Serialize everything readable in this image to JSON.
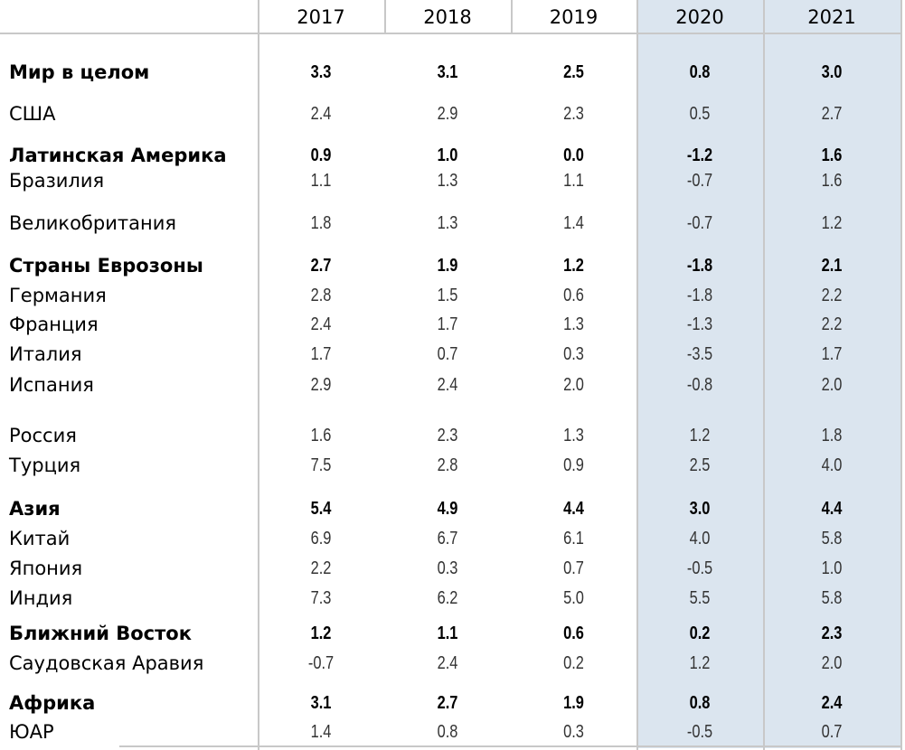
{
  "years": [
    "2017",
    "2018",
    "2019",
    "2020",
    "2021"
  ],
  "rows": [
    {
      "label": "Мир в целом",
      "bold": true,
      "values": [
        "3.3",
        "3.1",
        "2.5",
        "0.8",
        "3.0"
      ]
    },
    {
      "label": "США",
      "bold": false,
      "values": [
        "2.4",
        "2.9",
        "2.3",
        "0.5",
        "2.7"
      ]
    },
    {
      "label": "Латинская Америка",
      "bold": true,
      "values": [
        "0.9",
        "1.0",
        "0.0",
        "-1.2",
        "1.6"
      ]
    },
    {
      "label": "Бразилия",
      "bold": false,
      "values": [
        "1.1",
        "1.3",
        "1.1",
        "-0.7",
        "1.6"
      ]
    },
    {
      "label": "Великобритания",
      "bold": false,
      "values": [
        "1.8",
        "1.3",
        "1.4",
        "-0.7",
        "1.2"
      ]
    },
    {
      "label": "Страны Еврозоны",
      "bold": true,
      "values": [
        "2.7",
        "1.9",
        "1.2",
        "-1.8",
        "2.1"
      ]
    },
    {
      "label": "Германия",
      "bold": false,
      "values": [
        "2.8",
        "1.5",
        "0.6",
        "-1.8",
        "2.2"
      ]
    },
    {
      "label": "Франция",
      "bold": false,
      "values": [
        "2.4",
        "1.7",
        "1.3",
        "-1.3",
        "2.2"
      ]
    },
    {
      "label": "Италия",
      "bold": false,
      "values": [
        "1.7",
        "0.7",
        "0.3",
        "-3.5",
        "1.7"
      ]
    },
    {
      "label": "Испания",
      "bold": false,
      "values": [
        "2.9",
        "2.4",
        "2.0",
        "-0.8",
        "2.0"
      ]
    },
    {
      "label": "Россия",
      "bold": false,
      "values": [
        "1.6",
        "2.3",
        "1.3",
        "1.2",
        "1.8"
      ]
    },
    {
      "label": "Турция",
      "bold": false,
      "values": [
        "7.5",
        "2.8",
        "0.9",
        "2.5",
        "4.0"
      ]
    },
    {
      "label": "Азия",
      "bold": true,
      "values": [
        "5.4",
        "4.9",
        "4.4",
        "3.0",
        "4.4"
      ]
    },
    {
      "label": "Китай",
      "bold": false,
      "values": [
        "6.9",
        "6.7",
        "6.1",
        "4.0",
        "5.8"
      ]
    },
    {
      "label": "Япония",
      "bold": false,
      "values": [
        "2.2",
        "0.3",
        "0.7",
        "-0.5",
        "1.0"
      ]
    },
    {
      "label": "Индия",
      "bold": false,
      "values": [
        "7.3",
        "6.2",
        "5.0",
        "5.5",
        "5.8"
      ]
    },
    {
      "label": "Ближний Восток",
      "bold": true,
      "values": [
        "1.2",
        "1.1",
        "0.6",
        "0.2",
        "2.3"
      ]
    },
    {
      "label": "Саудовская Аравия",
      "bold": false,
      "values": [
        "-0.7",
        "2.4",
        "0.2",
        "1.2",
        "2.0"
      ]
    },
    {
      "label": "Африка",
      "bold": true,
      "values": [
        "3.1",
        "2.7",
        "1.9",
        "0.8",
        "2.4"
      ]
    },
    {
      "label": "ЮАР",
      "bold": false,
      "values": [
        "1.4",
        "0.8",
        "0.3",
        "-0.5",
        "0.7"
      ]
    }
  ],
  "colors": {
    "highlight_column_bg": "#dbe5ef",
    "grid_line": "#c8c8c8"
  }
}
